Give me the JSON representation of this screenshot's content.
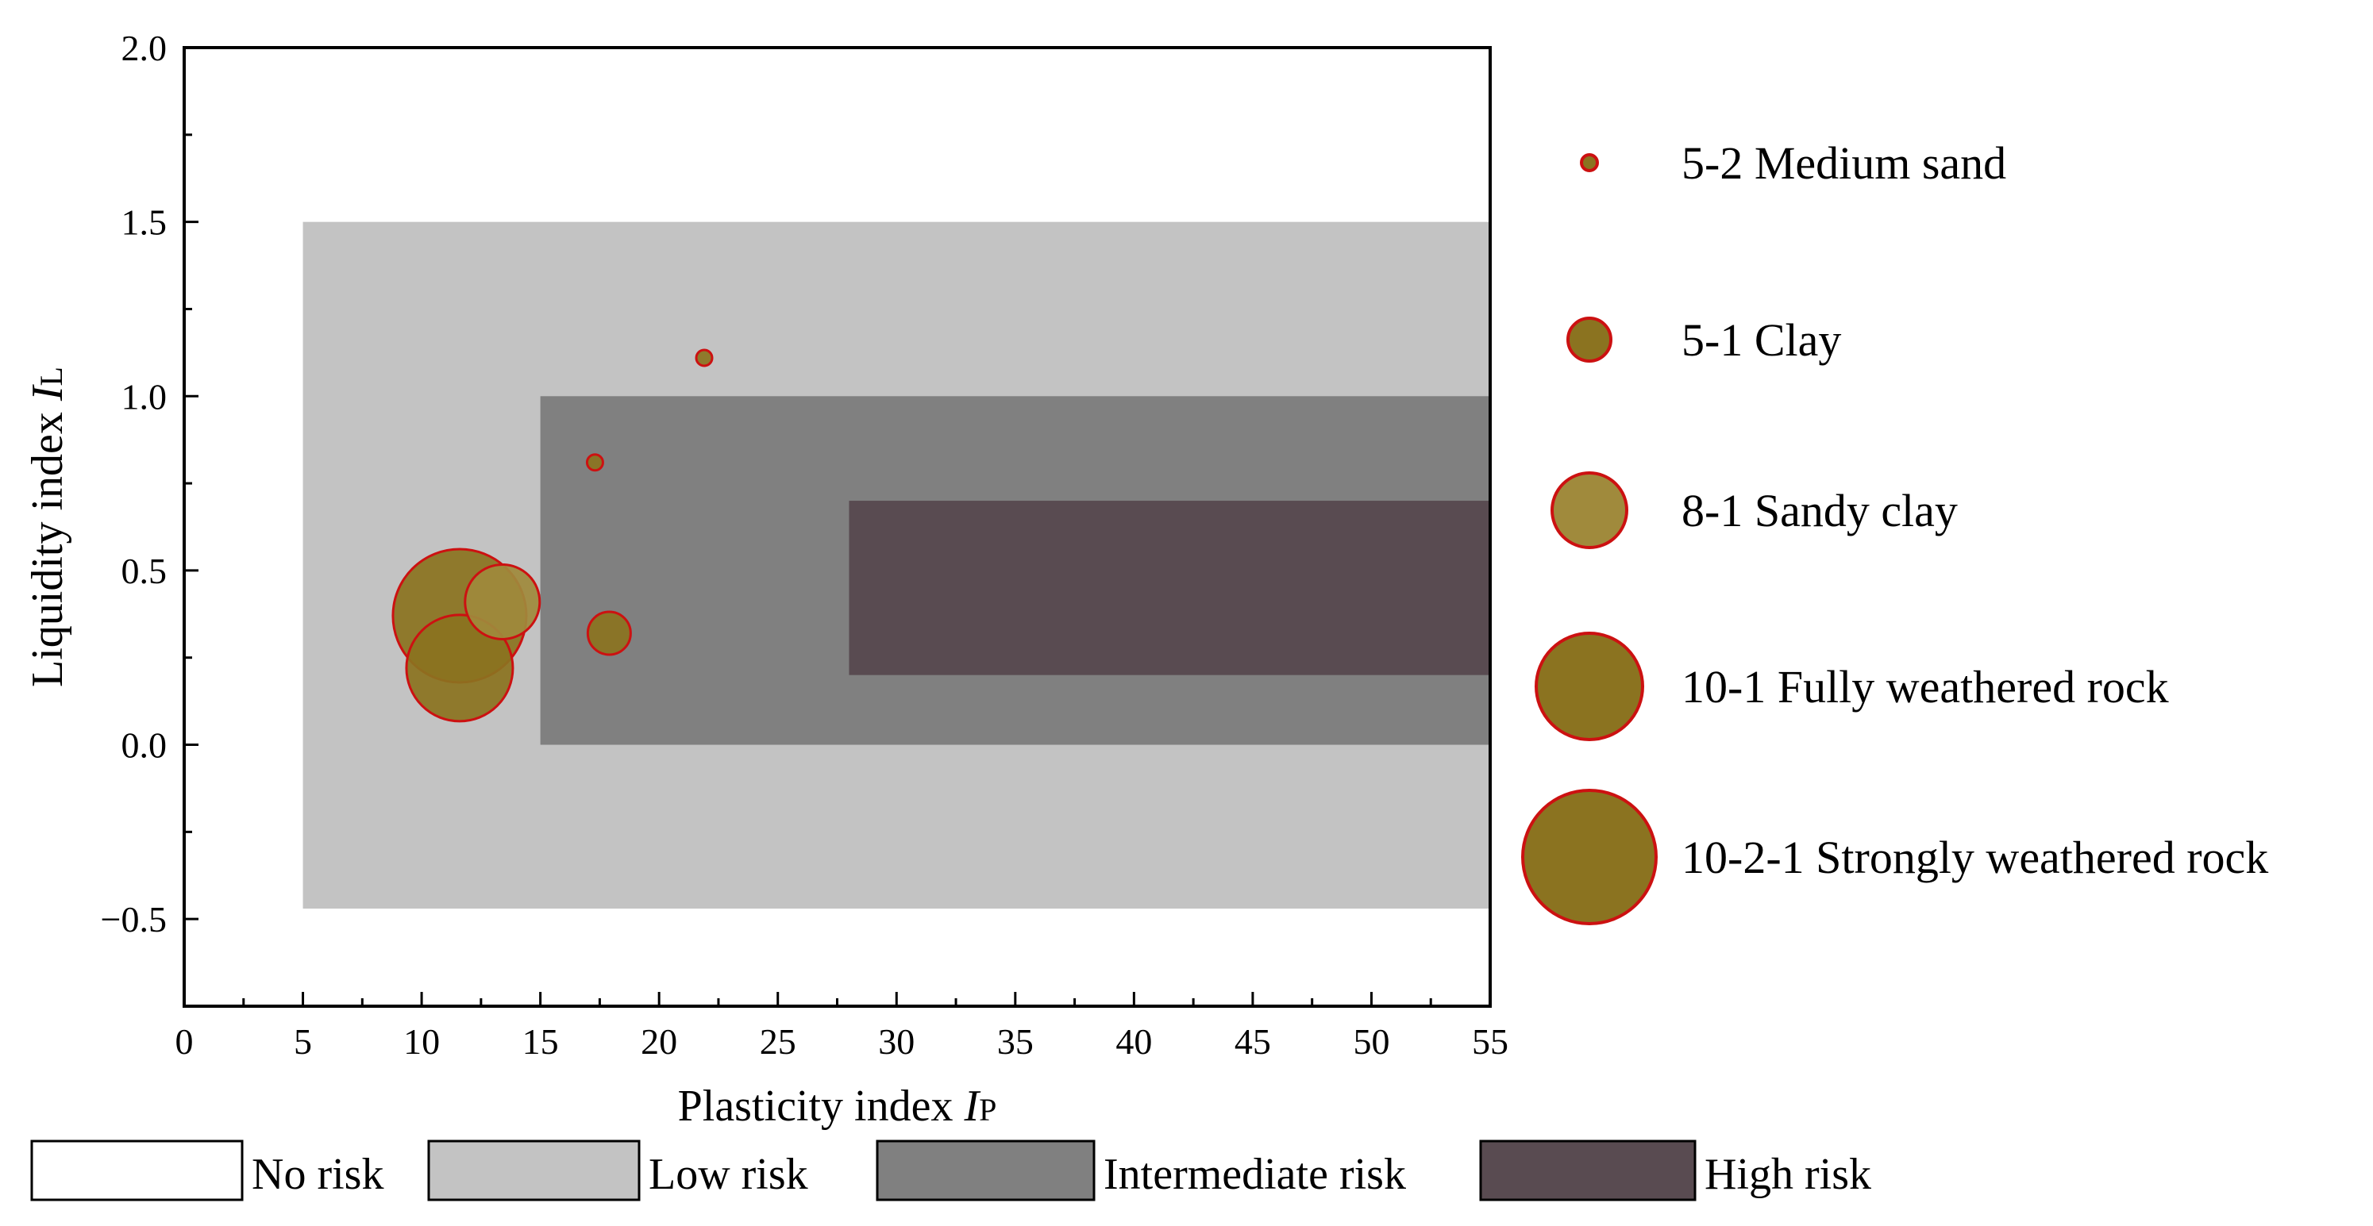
{
  "chart_data": {
    "type": "scatter",
    "xlabel": {
      "main": "Plasticity index ",
      "var": "I",
      "sub": "P"
    },
    "ylabel": {
      "main": "Liquidity index ",
      "var": "I",
      "sub": "L"
    },
    "xlim": [
      0,
      55
    ],
    "ylim": [
      -0.75,
      2.0
    ],
    "xticks": [
      "0",
      "5",
      "10",
      "15",
      "20",
      "25",
      "30",
      "35",
      "40",
      "45",
      "50",
      "55"
    ],
    "xtick_values": [
      0,
      5,
      10,
      15,
      20,
      25,
      30,
      35,
      40,
      45,
      50,
      55
    ],
    "yticks": [
      "−0.5",
      "0.0",
      "0.5",
      "1.0",
      "1.5",
      "2.0"
    ],
    "ytick_values": [
      -0.5,
      0.0,
      0.5,
      1.0,
      1.5,
      2.0
    ],
    "risk_zones": [
      {
        "name": "Low risk",
        "x": [
          5,
          55
        ],
        "y": [
          -0.47,
          1.5
        ],
        "color": "#c3c3c3"
      },
      {
        "name": "Intermediate risk",
        "x": [
          15,
          55
        ],
        "y": [
          0.0,
          1.0
        ],
        "color": "#808080"
      },
      {
        "name": "High risk",
        "x": [
          28,
          55
        ],
        "y": [
          0.2,
          0.7
        ],
        "color": "#594b51"
      }
    ],
    "risk_legend": [
      {
        "label": "No risk",
        "color": "#ffffff"
      },
      {
        "label": "Low risk",
        "color": "#c3c3c3"
      },
      {
        "label": "Intermediate risk",
        "color": "#808080"
      },
      {
        "label": "High risk",
        "color": "#594b51"
      }
    ],
    "series": [
      {
        "name": "5-2 Medium sand",
        "size_rank": 1,
        "points": [
          {
            "x": 21.9,
            "y": 1.11
          },
          {
            "x": 17.3,
            "y": 0.81
          }
        ]
      },
      {
        "name": "5-1 Clay",
        "size_rank": 2,
        "points": [
          {
            "x": 17.9,
            "y": 0.32
          }
        ]
      },
      {
        "name": "8-1 Sandy clay",
        "size_rank": 3,
        "points": [
          {
            "x": 13.4,
            "y": 0.41
          }
        ]
      },
      {
        "name": "10-1 Fully weathered rock",
        "size_rank": 4,
        "points": [
          {
            "x": 11.6,
            "y": 0.22
          }
        ]
      },
      {
        "name": "10-2-1 Strongly weathered rock",
        "size_rank": 5,
        "points": [
          {
            "x": 11.6,
            "y": 0.37
          }
        ]
      }
    ],
    "marker_fill": "#8b7320",
    "marker_fill_light": "#a08a3c",
    "marker_edge": "#cc1111"
  }
}
